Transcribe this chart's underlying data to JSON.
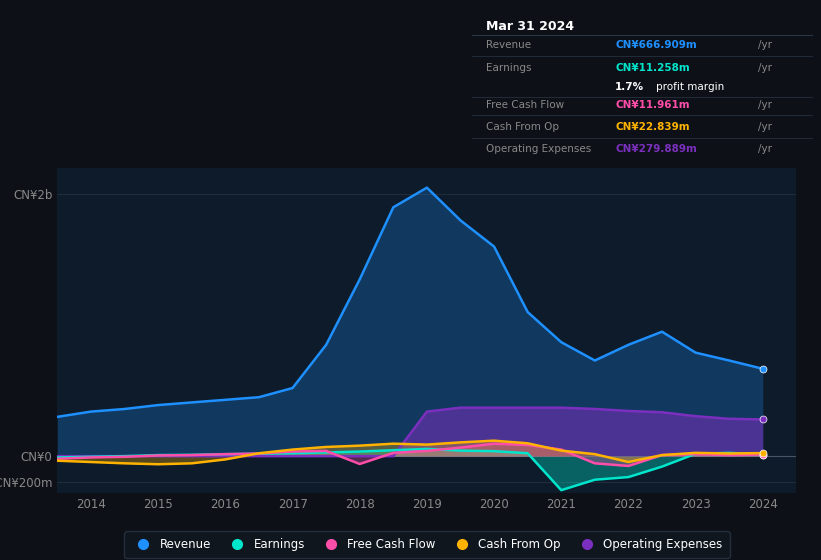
{
  "background_color": "#0d1117",
  "chart_bg": "#0d1b2a",
  "years": [
    2013.5,
    2014.0,
    2014.5,
    2015.0,
    2015.5,
    2016.0,
    2016.5,
    2017.0,
    2017.5,
    2018.0,
    2018.5,
    2019.0,
    2019.5,
    2020.0,
    2020.5,
    2021.0,
    2021.5,
    2022.0,
    2022.5,
    2023.0,
    2023.5,
    2024.0
  ],
  "revenue": [
    300,
    340,
    360,
    390,
    410,
    430,
    450,
    520,
    850,
    1350,
    1900,
    2050,
    1800,
    1600,
    1100,
    870,
    730,
    850,
    950,
    790,
    730,
    667
  ],
  "earnings": [
    -10,
    -5,
    0,
    8,
    10,
    15,
    18,
    22,
    28,
    35,
    45,
    55,
    42,
    38,
    22,
    -260,
    -180,
    -160,
    -80,
    18,
    25,
    11
  ],
  "free_cash_flow": [
    -20,
    -10,
    -5,
    5,
    8,
    15,
    20,
    35,
    40,
    -60,
    25,
    40,
    65,
    95,
    85,
    50,
    -55,
    -75,
    8,
    15,
    8,
    12
  ],
  "cash_from_op": [
    -35,
    -45,
    -55,
    -62,
    -55,
    -25,
    22,
    50,
    70,
    80,
    95,
    88,
    105,
    118,
    98,
    42,
    15,
    -45,
    8,
    25,
    20,
    23
  ],
  "operating_expenses": [
    0,
    0,
    0,
    0,
    0,
    0,
    0,
    0,
    0,
    0,
    0,
    340,
    370,
    370,
    370,
    370,
    360,
    345,
    335,
    305,
    285,
    280
  ],
  "colors": {
    "revenue": "#1e90ff",
    "earnings": "#00e5cc",
    "free_cash_flow": "#ff4daa",
    "cash_from_op": "#ffb300",
    "operating_expenses": "#7b2fbe"
  },
  "tooltip": {
    "date": "Mar 31 2024",
    "revenue_val": "CN¥666.909m",
    "earnings_val": "CN¥11.258m",
    "profit_margin": "1.7%",
    "fcf_val": "CN¥11.961m",
    "cashfromop_val": "CN¥22.839m",
    "opex_val": "CN¥279.889m"
  },
  "xlim": [
    2013.5,
    2024.5
  ],
  "ylim": [
    -280,
    2200
  ],
  "xticks": [
    2014,
    2015,
    2016,
    2017,
    2018,
    2019,
    2020,
    2021,
    2022,
    2023,
    2024
  ],
  "ytick_positions": [
    -200,
    0,
    2000
  ],
  "ytick_labels": [
    "-CN¥200m",
    "CN¥0",
    "CN¥2b"
  ],
  "legend": [
    {
      "label": "Revenue",
      "color": "#1e90ff"
    },
    {
      "label": "Earnings",
      "color": "#00e5cc"
    },
    {
      "label": "Free Cash Flow",
      "color": "#ff4daa"
    },
    {
      "label": "Cash From Op",
      "color": "#ffb300"
    },
    {
      "label": "Operating Expenses",
      "color": "#7b2fbe"
    }
  ]
}
